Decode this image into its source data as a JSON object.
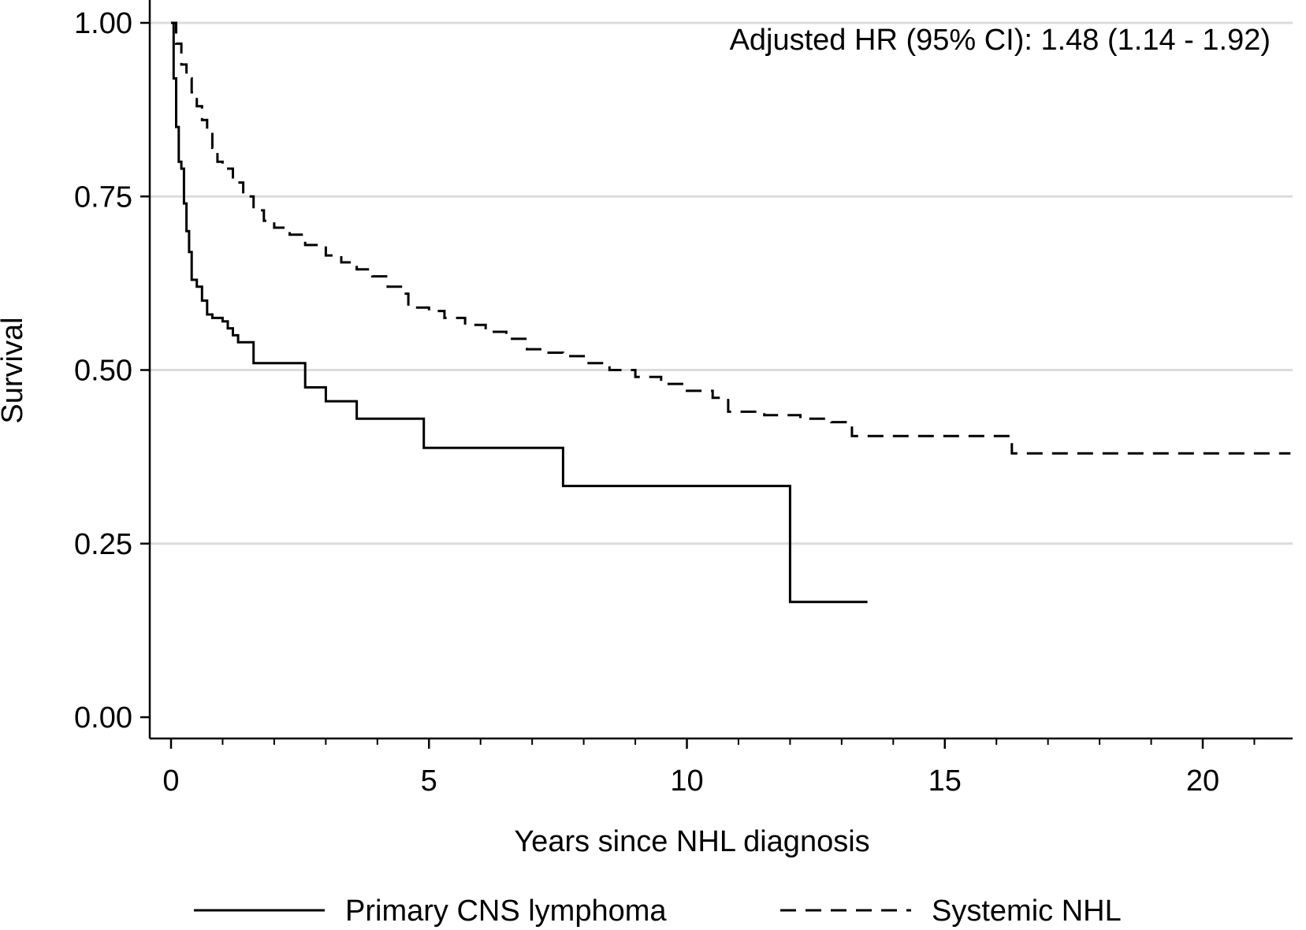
{
  "chart_data": {
    "type": "line",
    "title": "",
    "xlabel": "Years since NHL diagnosis",
    "ylabel": "Survival",
    "annotation": "Adjusted HR (95% CI): 1.48 (1.14 - 1.92)",
    "xlim": [
      0,
      21.8
    ],
    "ylim": [
      0,
      1
    ],
    "x_ticks": [
      0,
      5,
      10,
      15,
      20
    ],
    "x_minor_tick_step": 1,
    "y_ticks": [
      0,
      0.25,
      0.5,
      0.75,
      1
    ],
    "y_tick_labels": [
      "0.00",
      "0.25",
      "0.50",
      "0.75",
      "1.00"
    ],
    "grid": "horizontal",
    "legend_position": "bottom",
    "series": [
      {
        "name": "Primary CNS lymphoma",
        "style": "solid",
        "step": true,
        "points": [
          [
            0,
            1.0
          ],
          [
            0.05,
            0.92
          ],
          [
            0.1,
            0.85
          ],
          [
            0.15,
            0.8
          ],
          [
            0.2,
            0.79
          ],
          [
            0.25,
            0.74
          ],
          [
            0.3,
            0.7
          ],
          [
            0.35,
            0.67
          ],
          [
            0.4,
            0.63
          ],
          [
            0.5,
            0.62
          ],
          [
            0.6,
            0.6
          ],
          [
            0.7,
            0.58
          ],
          [
            0.8,
            0.575
          ],
          [
            1.0,
            0.57
          ],
          [
            1.1,
            0.56
          ],
          [
            1.2,
            0.55
          ],
          [
            1.3,
            0.54
          ],
          [
            1.6,
            0.51
          ],
          [
            2.6,
            0.475
          ],
          [
            3.0,
            0.455
          ],
          [
            3.6,
            0.43
          ],
          [
            4.9,
            0.388
          ],
          [
            7.6,
            0.333
          ],
          [
            12.0,
            0.166
          ],
          [
            13.5,
            0.166
          ]
        ]
      },
      {
        "name": "Systemic NHL",
        "style": "dashed",
        "step": true,
        "points": [
          [
            0,
            1.0
          ],
          [
            0.1,
            0.97
          ],
          [
            0.2,
            0.94
          ],
          [
            0.3,
            0.92
          ],
          [
            0.4,
            0.9
          ],
          [
            0.5,
            0.88
          ],
          [
            0.6,
            0.86
          ],
          [
            0.7,
            0.84
          ],
          [
            0.8,
            0.82
          ],
          [
            0.9,
            0.8
          ],
          [
            1.0,
            0.79
          ],
          [
            1.2,
            0.77
          ],
          [
            1.4,
            0.75
          ],
          [
            1.6,
            0.73
          ],
          [
            1.8,
            0.715
          ],
          [
            2.0,
            0.705
          ],
          [
            2.3,
            0.695
          ],
          [
            2.6,
            0.68
          ],
          [
            3.0,
            0.665
          ],
          [
            3.3,
            0.655
          ],
          [
            3.6,
            0.645
          ],
          [
            3.9,
            0.635
          ],
          [
            4.2,
            0.62
          ],
          [
            4.5,
            0.61
          ],
          [
            4.6,
            0.59
          ],
          [
            5.0,
            0.585
          ],
          [
            5.3,
            0.575
          ],
          [
            5.7,
            0.565
          ],
          [
            6.1,
            0.555
          ],
          [
            6.5,
            0.545
          ],
          [
            6.9,
            0.53
          ],
          [
            7.2,
            0.525
          ],
          [
            7.6,
            0.52
          ],
          [
            8.0,
            0.51
          ],
          [
            8.5,
            0.5
          ],
          [
            9.0,
            0.49
          ],
          [
            9.5,
            0.48
          ],
          [
            10.0,
            0.47
          ],
          [
            10.5,
            0.46
          ],
          [
            10.8,
            0.44
          ],
          [
            11.5,
            0.435
          ],
          [
            12.2,
            0.43
          ],
          [
            12.8,
            0.425
          ],
          [
            13.2,
            0.405
          ],
          [
            16.3,
            0.38
          ],
          [
            21.7,
            0.38
          ]
        ]
      }
    ]
  }
}
